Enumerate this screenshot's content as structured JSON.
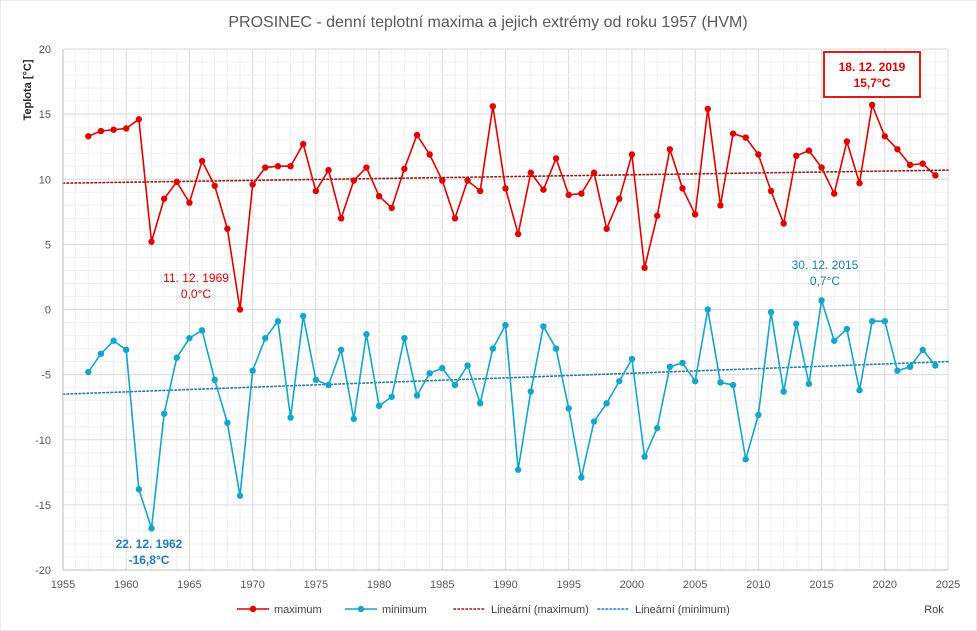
{
  "chart_data": {
    "type": "line",
    "title": "PROSINEC - denní teplotní maxima a jejich extrémy od roku 1957 (HVM)",
    "ylabel": "Teplota [°C]",
    "xlabel": "Rok",
    "xlim": [
      1955,
      2025
    ],
    "ylim": [
      -20,
      20
    ],
    "xticks": [
      "1955",
      "1960",
      "1965",
      "1970",
      "1975",
      "1980",
      "1985",
      "1990",
      "1995",
      "2000",
      "2005",
      "2010",
      "2015",
      "2020",
      "2025"
    ],
    "yticks": [
      "20",
      "15",
      "10",
      "5",
      "0",
      "-5",
      "-10",
      "-15",
      "-20"
    ],
    "grid": true,
    "legend_position": "bottom",
    "colors": {
      "maximum": "#e00000",
      "minimum": "#14a5cf",
      "trend_max": "#9a1a10",
      "trend_min": "#1f7db8"
    },
    "x": [
      1957,
      1958,
      1959,
      1960,
      1961,
      1962,
      1963,
      1964,
      1965,
      1966,
      1967,
      1968,
      1969,
      1970,
      1971,
      1972,
      1973,
      1974,
      1975,
      1976,
      1977,
      1978,
      1979,
      1980,
      1981,
      1982,
      1983,
      1984,
      1985,
      1986,
      1987,
      1988,
      1989,
      1990,
      1991,
      1992,
      1993,
      1994,
      1995,
      1996,
      1997,
      1998,
      1999,
      2000,
      2001,
      2002,
      2003,
      2004,
      2005,
      2006,
      2007,
      2008,
      2009,
      2010,
      2011,
      2012,
      2013,
      2014,
      2015,
      2016,
      2017,
      2018,
      2019,
      2020,
      2021,
      2022,
      2023,
      2024
    ],
    "series": [
      {
        "name": "maximum",
        "values": [
          13.3,
          13.7,
          13.8,
          13.9,
          14.6,
          5.2,
          8.5,
          9.8,
          8.2,
          11.4,
          9.5,
          6.2,
          0.0,
          9.6,
          10.9,
          11.0,
          11.0,
          12.7,
          9.1,
          10.7,
          7.0,
          9.9,
          10.9,
          8.7,
          7.8,
          10.8,
          13.4,
          11.9,
          9.9,
          7.0,
          9.9,
          9.1,
          15.6,
          9.3,
          5.8,
          10.5,
          9.2,
          11.6,
          8.8,
          8.9,
          10.5,
          6.2,
          8.5,
          11.9,
          3.2,
          7.2,
          12.3,
          9.3,
          7.3,
          15.4,
          8.0,
          13.5,
          13.2,
          11.9,
          9.1,
          6.6,
          11.8,
          12.2,
          10.9,
          8.9,
          12.9,
          9.7,
          15.7,
          13.3,
          12.3,
          11.1,
          11.2,
          10.3
        ]
      },
      {
        "name": "minimum",
        "values": [
          -4.8,
          -3.4,
          -2.4,
          -3.1,
          -13.8,
          -16.8,
          -8.0,
          -3.7,
          -2.2,
          -1.6,
          -5.4,
          -8.7,
          -14.3,
          -4.7,
          -2.2,
          -0.9,
          -8.3,
          -0.5,
          -5.4,
          -5.8,
          -3.1,
          -8.4,
          -1.9,
          -7.4,
          -6.7,
          -2.2,
          -6.6,
          -4.9,
          -4.5,
          -5.8,
          -4.3,
          -7.2,
          -3.0,
          -1.2,
          -12.3,
          -6.3,
          -1.3,
          -3.0,
          -7.6,
          -12.9,
          -8.6,
          -7.2,
          -5.5,
          -3.8,
          -11.3,
          -9.1,
          -4.4,
          -4.1,
          -5.5,
          0.0,
          -5.6,
          -5.8,
          -11.5,
          -8.1,
          -0.2,
          -6.3,
          -1.1,
          -5.7,
          0.7,
          -2.4,
          -1.5,
          -6.2,
          -0.9,
          -0.9,
          -4.7,
          -4.4,
          -3.1,
          -4.3
        ]
      }
    ],
    "trends": [
      {
        "name": "Lineární (maximum)",
        "y_at_xmin": 9.7,
        "y_at_xmax": 10.7
      },
      {
        "name": "Lineární (minimum)",
        "y_at_xmin": -6.5,
        "y_at_xmax": -4.0
      }
    ],
    "annotations": [
      {
        "id": "max2019",
        "line1": "18. 12. 2019",
        "line2": "15,7°C",
        "color": "#e00000",
        "boxed": true
      },
      {
        "id": "max1969",
        "line1": "11. 12. 1969",
        "line2": "0,0°C",
        "color": "#e00000",
        "boxed": false
      },
      {
        "id": "min2015",
        "line1": "30. 12. 2015",
        "line2": "0,7°C",
        "color": "#1f7db8",
        "boxed": false
      },
      {
        "id": "min1962",
        "line1": "22. 12. 1962",
        "line2": "-16,8°C",
        "color": "#1f7db8",
        "boxed": false
      }
    ],
    "legend": [
      {
        "label": "maximum",
        "kind": "line-marker",
        "color": "#e00000"
      },
      {
        "label": "minimum",
        "kind": "line-marker",
        "color": "#14a5cf"
      },
      {
        "label": "Lineární (maximum)",
        "kind": "dotted",
        "color": "#9a1a10"
      },
      {
        "label": "Lineární (minimum)",
        "kind": "dotted",
        "color": "#1f7db8"
      }
    ]
  }
}
